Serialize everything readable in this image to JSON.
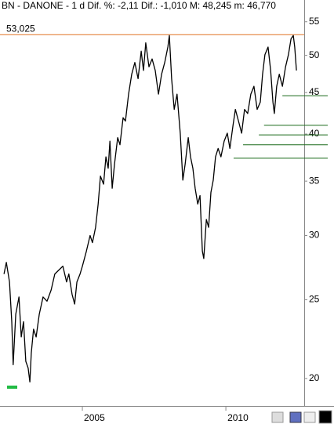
{
  "chart_data": {
    "type": "line",
    "title": "BN - DANONE - 1 d  Dif. %: -2,11  Dif.: -1,010  M: 48,245  m: 46,770",
    "log_scale": true,
    "xlim": [
      2002.13,
      2012.73
    ],
    "xticks": [
      2005,
      2010
    ],
    "ylim": [
      18.5,
      58.5
    ],
    "yticks": [
      20,
      25,
      30,
      35,
      40,
      45,
      50,
      55
    ],
    "series": [
      {
        "color": "#000000",
        "x": [
          2002.27,
          2002.35,
          2002.46,
          2002.54,
          2002.59,
          2002.68,
          2002.79,
          2002.87,
          2002.95,
          2003.03,
          2003.11,
          2003.17,
          2003.22,
          2003.3,
          2003.39,
          2003.5,
          2003.63,
          2003.77,
          2003.91,
          2004.04,
          2004.18,
          2004.32,
          2004.45,
          2004.53,
          2004.64,
          2004.73,
          2004.81,
          2004.92,
          2005.0,
          2005.14,
          2005.27,
          2005.35,
          2005.46,
          2005.55,
          2005.63,
          2005.74,
          2005.82,
          2005.9,
          2005.96,
          2006.04,
          2006.12,
          2006.23,
          2006.31,
          2006.42,
          2006.5,
          2006.61,
          2006.72,
          2006.83,
          2006.94,
          2007.05,
          2007.13,
          2007.21,
          2007.32,
          2007.43,
          2007.54,
          2007.65,
          2007.76,
          2007.87,
          2007.98,
          2008.03,
          2008.11,
          2008.2,
          2008.3,
          2008.41,
          2008.5,
          2008.58,
          2008.69,
          2008.77,
          2008.85,
          2008.93,
          2009.02,
          2009.1,
          2009.18,
          2009.23,
          2009.32,
          2009.4,
          2009.48,
          2009.56,
          2009.64,
          2009.73,
          2009.83,
          2009.94,
          2010.05,
          2010.14,
          2010.25,
          2010.33,
          2010.44,
          2010.55,
          2010.65,
          2010.76,
          2010.87,
          2010.98,
          2011.09,
          2011.2,
          2011.28,
          2011.36,
          2011.47,
          2011.56,
          2011.64,
          2011.69,
          2011.77,
          2011.86,
          2011.97,
          2012.08,
          2012.18,
          2012.27,
          2012.35,
          2012.4,
          2012.46
        ],
        "values": [
          26.9,
          27.8,
          26.3,
          23.5,
          20.8,
          24.0,
          25.2,
          22.5,
          23.5,
          21.0,
          20.6,
          19.8,
          21.5,
          23.0,
          22.5,
          24.0,
          25.2,
          24.9,
          25.7,
          26.9,
          27.2,
          27.5,
          26.3,
          26.9,
          25.4,
          24.7,
          26.3,
          26.9,
          27.5,
          28.7,
          30.0,
          29.4,
          30.7,
          32.8,
          35.5,
          34.7,
          37.5,
          36.3,
          39.2,
          34.3,
          36.7,
          39.6,
          38.8,
          41.9,
          41.5,
          44.8,
          47.4,
          49.0,
          46.8,
          50.6,
          47.9,
          51.8,
          48.4,
          49.5,
          47.9,
          44.8,
          47.4,
          49.0,
          51.2,
          52.9,
          46.8,
          42.9,
          44.8,
          40.1,
          35.1,
          36.7,
          39.6,
          37.5,
          36.3,
          34.3,
          32.8,
          33.6,
          28.7,
          28.1,
          31.4,
          30.7,
          33.9,
          35.1,
          37.5,
          38.4,
          37.5,
          39.2,
          40.1,
          38.4,
          41.0,
          42.9,
          41.5,
          40.1,
          42.9,
          42.4,
          44.8,
          45.8,
          42.9,
          43.8,
          47.4,
          50.1,
          51.2,
          47.9,
          43.8,
          42.4,
          45.8,
          47.4,
          45.8,
          48.4,
          50.1,
          52.4,
          52.9,
          51.2,
          47.9
        ]
      }
    ],
    "reference_line": {
      "value": 53.025,
      "label": "53,025",
      "color": "#e07020"
    },
    "support_lines": {
      "color": "#1a6a1a",
      "y": [
        44.6,
        41.0,
        39.9,
        38.8,
        37.35
      ],
      "x": [
        2011.97,
        2011.33,
        2011.15,
        2010.6,
        2010.27
      ]
    }
  }
}
